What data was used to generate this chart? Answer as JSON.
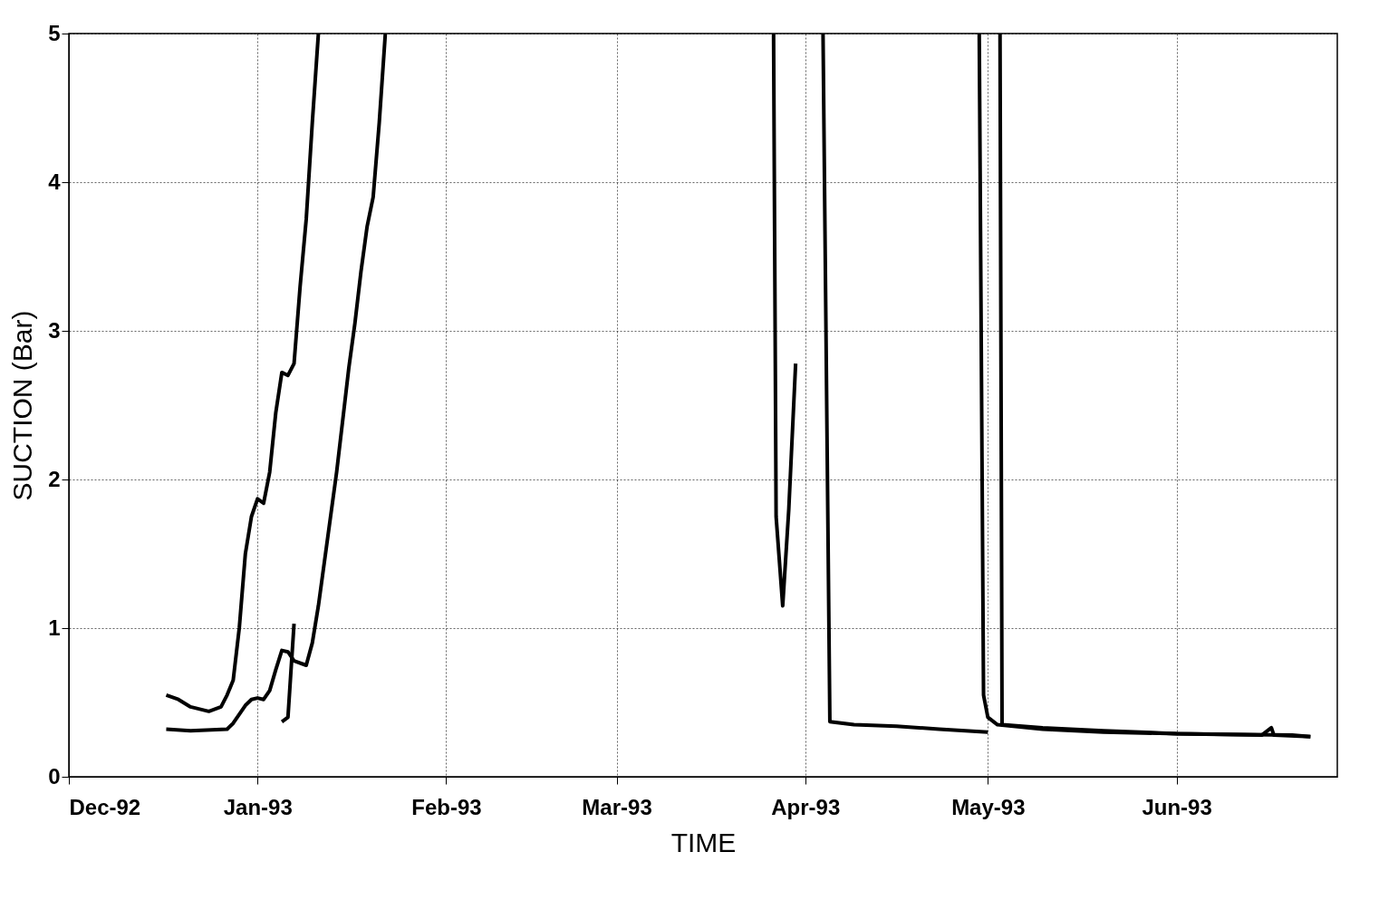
{
  "chart_data": {
    "type": "line",
    "xlabel": "TIME",
    "ylabel": "SUCTION (Bar)",
    "xlim": [
      "1992-12-01",
      "1993-06-27T10:00"
    ],
    "xticks": [
      {
        "value": "1992-12-01",
        "label": "Dec-92"
      },
      {
        "value": "1993-01-01",
        "label": "Jan-93"
      },
      {
        "value": "1993-02-01",
        "label": "Feb-93"
      },
      {
        "value": "1993-03-01",
        "label": "Mar-93"
      },
      {
        "value": "1993-04-01",
        "label": "Apr-93"
      },
      {
        "value": "1993-05-01",
        "label": "May-93"
      },
      {
        "value": "1993-06-01",
        "label": "Jun-93"
      }
    ],
    "ylim": [
      0,
      5
    ],
    "yticks": [
      0,
      1,
      2,
      3,
      4,
      5
    ],
    "grid": true,
    "line_style": "solid",
    "series": [
      {
        "color": "#000000",
        "x": [
          "1992-12-17",
          "1992-12-19",
          "1992-12-21",
          "1992-12-24",
          "1992-12-26",
          "1992-12-27",
          "1992-12-28",
          "1992-12-29",
          "1992-12-30",
          "1992-12-31",
          "1993-01-01",
          "1993-01-02",
          "1993-01-03",
          "1993-01-04",
          "1993-01-05",
          "1993-01-06",
          "1993-01-07",
          "1993-01-08",
          "1993-01-09",
          "1993-01-10",
          "1993-01-11"
        ],
        "values": [
          0.55,
          0.52,
          0.47,
          0.44,
          0.47,
          0.55,
          0.65,
          1.0,
          1.5,
          1.75,
          1.87,
          1.84,
          2.05,
          2.45,
          2.72,
          2.7,
          2.78,
          3.3,
          3.75,
          4.4,
          5.0
        ]
      },
      {
        "color": "#000000",
        "x": [
          "1992-12-17",
          "1992-12-21",
          "1992-12-27",
          "1992-12-28",
          "1992-12-30",
          "1992-12-31",
          "1993-01-01",
          "1993-01-02",
          "1993-01-03",
          "1993-01-04",
          "1993-01-05",
          "1993-01-06",
          "1993-01-07",
          "1993-01-09",
          "1993-01-10",
          "1993-01-11",
          "1993-01-12",
          "1993-01-13",
          "1993-01-14",
          "1993-01-15",
          "1993-01-16",
          "1993-01-17",
          "1993-01-18",
          "1993-01-19",
          "1993-01-20",
          "1993-01-21",
          "1993-01-22"
        ],
        "values": [
          0.32,
          0.31,
          0.32,
          0.36,
          0.48,
          0.52,
          0.53,
          0.52,
          0.58,
          0.72,
          0.85,
          0.84,
          0.78,
          0.75,
          0.9,
          1.15,
          1.45,
          1.75,
          2.05,
          2.4,
          2.75,
          3.05,
          3.4,
          3.7,
          3.9,
          4.4,
          5.0
        ]
      },
      {
        "color": "#000000",
        "x": [
          "1993-01-05",
          "1993-01-06",
          "1993-01-07"
        ],
        "values": [
          0.37,
          0.4,
          1.03
        ]
      },
      {
        "color": "#000000",
        "x": [
          "1993-03-26T19:00",
          "1993-03-27T05:00",
          "1993-03-28T07:00",
          "1993-03-29T07:00",
          "1993-03-30T10:00"
        ],
        "values": [
          5.0,
          1.75,
          1.15,
          1.8,
          2.78
        ]
      },
      {
        "color": "#000000",
        "x": [
          "1993-04-03T22:00",
          "1993-04-05T01:00",
          "1993-04-09",
          "1993-04-16",
          "1993-04-23",
          "1993-05-01"
        ],
        "values": [
          5.0,
          0.37,
          0.35,
          0.34,
          0.32,
          0.3
        ]
      },
      {
        "color": "#000000",
        "x": [
          "1993-04-29T14:00",
          "1993-04-30T07:00",
          "1993-05-01",
          "1993-05-02T14:00",
          "1993-05-10",
          "1993-05-20",
          "1993-06-01",
          "1993-06-10",
          "1993-06-20",
          "1993-06-23"
        ],
        "values": [
          5.0,
          0.55,
          0.4,
          0.35,
          0.32,
          0.3,
          0.29,
          0.285,
          0.28,
          0.27
        ]
      },
      {
        "color": "#000000",
        "x": [
          "1993-05-03",
          "1993-05-03T08:00",
          "1993-05-10",
          "1993-05-20",
          "1993-06-01",
          "1993-06-15",
          "1993-06-16T14:00",
          "1993-06-17",
          "1993-06-23"
        ],
        "values": [
          5.0,
          0.35,
          0.33,
          0.31,
          0.29,
          0.28,
          0.33,
          0.28,
          0.27
        ]
      }
    ]
  }
}
